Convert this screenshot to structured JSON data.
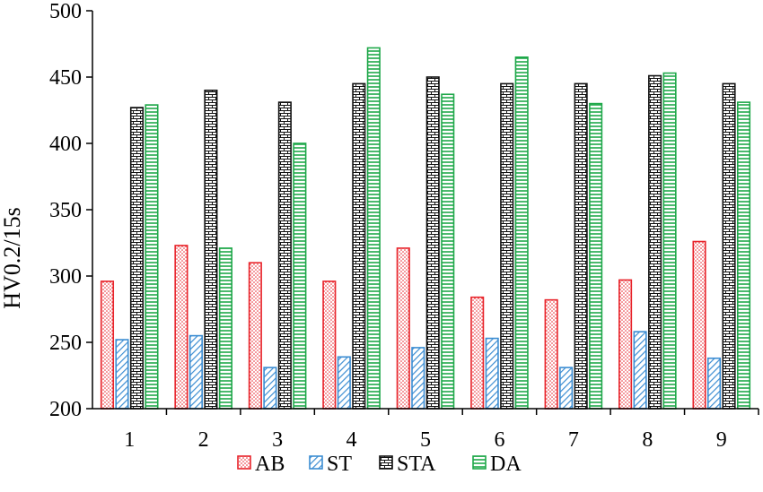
{
  "chart_data": {
    "type": "bar",
    "title": "",
    "xlabel": "",
    "ylabel": "HV0.2/15s",
    "ylim": [
      200,
      500
    ],
    "yticks": [
      200,
      250,
      300,
      350,
      400,
      450,
      500
    ],
    "categories": [
      "1",
      "2",
      "3",
      "4",
      "5",
      "6",
      "7",
      "8",
      "9"
    ],
    "grid": false,
    "legend_position": "bottom",
    "series": [
      {
        "name": "AB",
        "color": "#e8232a",
        "pattern": "dots",
        "values": [
          296,
          323,
          310,
          296,
          321,
          284,
          282,
          297,
          326
        ]
      },
      {
        "name": "ST",
        "color": "#3c8dd2",
        "pattern": "diagonal-hatch",
        "values": [
          252,
          255,
          231,
          239,
          246,
          253,
          231,
          258,
          238
        ]
      },
      {
        "name": "STA",
        "color": "#111111",
        "pattern": "brick",
        "values": [
          427,
          440,
          431,
          445,
          450,
          445,
          445,
          451,
          445
        ]
      },
      {
        "name": "DA",
        "color": "#1fa84a",
        "pattern": "horizontal-lines",
        "values": [
          429,
          321,
          400,
          472,
          437,
          465,
          430,
          453,
          431
        ]
      }
    ]
  }
}
